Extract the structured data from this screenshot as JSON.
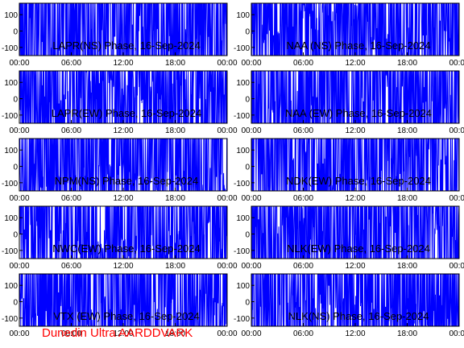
{
  "page": {
    "background": "#ffffff"
  },
  "footer": {
    "text": "Dunedin Ultra AARDDVARK",
    "color": "#ff0000"
  },
  "chart_data": [
    {
      "type": "line",
      "title": "LAPR(NS) Phase, 16-Sep-2024",
      "x_ticks": [
        "00:00",
        "06:00",
        "12:00",
        "18:00",
        "00:00"
      ],
      "y_ticks": [
        "100",
        "0",
        "-100"
      ],
      "ylim": [
        -150,
        170
      ],
      "series_color": "#0000ff",
      "density": 0.95,
      "seed": 11
    },
    {
      "type": "line",
      "title": "NAA (NS) Phase, 16-Sep-2024",
      "x_ticks": [
        "00:00",
        "06:00",
        "12:00",
        "18:00",
        "00:00"
      ],
      "y_ticks": [
        "100",
        "0",
        "-100"
      ],
      "ylim": [
        -150,
        170
      ],
      "series_color": "#0000ff",
      "density": 0.85,
      "seed": 12
    },
    {
      "type": "line",
      "title": "LAPR(EW) Phase, 16-Sep-2024",
      "x_ticks": [
        "00:00",
        "06:00",
        "12:00",
        "18:00",
        "00:00"
      ],
      "y_ticks": [
        "100",
        "0",
        "-100"
      ],
      "ylim": [
        -150,
        170
      ],
      "series_color": "#0000ff",
      "density": 0.85,
      "seed": 13
    },
    {
      "type": "line",
      "title": "NAA (EW) Phase, 16-Sep-2024",
      "x_ticks": [
        "00:00",
        "06:00",
        "12:00",
        "18:00",
        "00:00"
      ],
      "y_ticks": [
        "100",
        "0",
        "-100"
      ],
      "ylim": [
        -150,
        170
      ],
      "series_color": "#0000ff",
      "density": 0.9,
      "seed": 14
    },
    {
      "type": "line",
      "title": "NPM(NS) Phase, 16-Sep-2024",
      "x_ticks": [
        "00:00",
        "06:00",
        "12:00",
        "18:00",
        "00:00"
      ],
      "y_ticks": [
        "100",
        "0",
        "-100"
      ],
      "ylim": [
        -150,
        170
      ],
      "series_color": "#0000ff",
      "density": 0.85,
      "seed": 15
    },
    {
      "type": "line",
      "title": "NDK(EW) Phase, 16-Sep-2024",
      "x_ticks": [
        "00:00",
        "06:00",
        "12:00",
        "18:00",
        "00:00"
      ],
      "y_ticks": [
        "100",
        "0",
        "-100"
      ],
      "ylim": [
        -150,
        170
      ],
      "series_color": "#0000ff",
      "density": 0.9,
      "seed": 16
    },
    {
      "type": "line",
      "title": "NWC(EW) Phase, 16-Sep-2024",
      "x_ticks": [
        "00:00",
        "06:00",
        "12:00",
        "18:00",
        "00:00"
      ],
      "y_ticks": [
        "100",
        "0",
        "-100"
      ],
      "ylim": [
        -150,
        170
      ],
      "series_color": "#0000ff",
      "density": 0.85,
      "seed": 17
    },
    {
      "type": "line",
      "title": "NLK(EW) Phase, 16-Sep-2024",
      "x_ticks": [
        "00:00",
        "06:00",
        "12:00",
        "18:00",
        "00:00"
      ],
      "y_ticks": [
        "100",
        "0",
        "-100"
      ],
      "ylim": [
        -150,
        170
      ],
      "series_color": "#0000ff",
      "density": 0.9,
      "seed": 18
    },
    {
      "type": "line",
      "title": "VTX (EW) Phase, 16-Sep-2024",
      "x_ticks": [
        "00:00",
        "06:00",
        "12:00",
        "18:00",
        "00:00"
      ],
      "y_ticks": [
        "100",
        "0",
        "-100"
      ],
      "ylim": [
        -150,
        170
      ],
      "series_color": "#0000ff",
      "density": 0.85,
      "seed": 19
    },
    {
      "type": "line",
      "title": "NLK(NS) Phase, 16-Sep-2024",
      "x_ticks": [
        "00:00",
        "06:00",
        "12:00",
        "18:00",
        "00:00"
      ],
      "y_ticks": [
        "100",
        "0",
        "-100"
      ],
      "ylim": [
        -150,
        170
      ],
      "series_color": "#0000ff",
      "density": 0.8,
      "seed": 20
    }
  ]
}
